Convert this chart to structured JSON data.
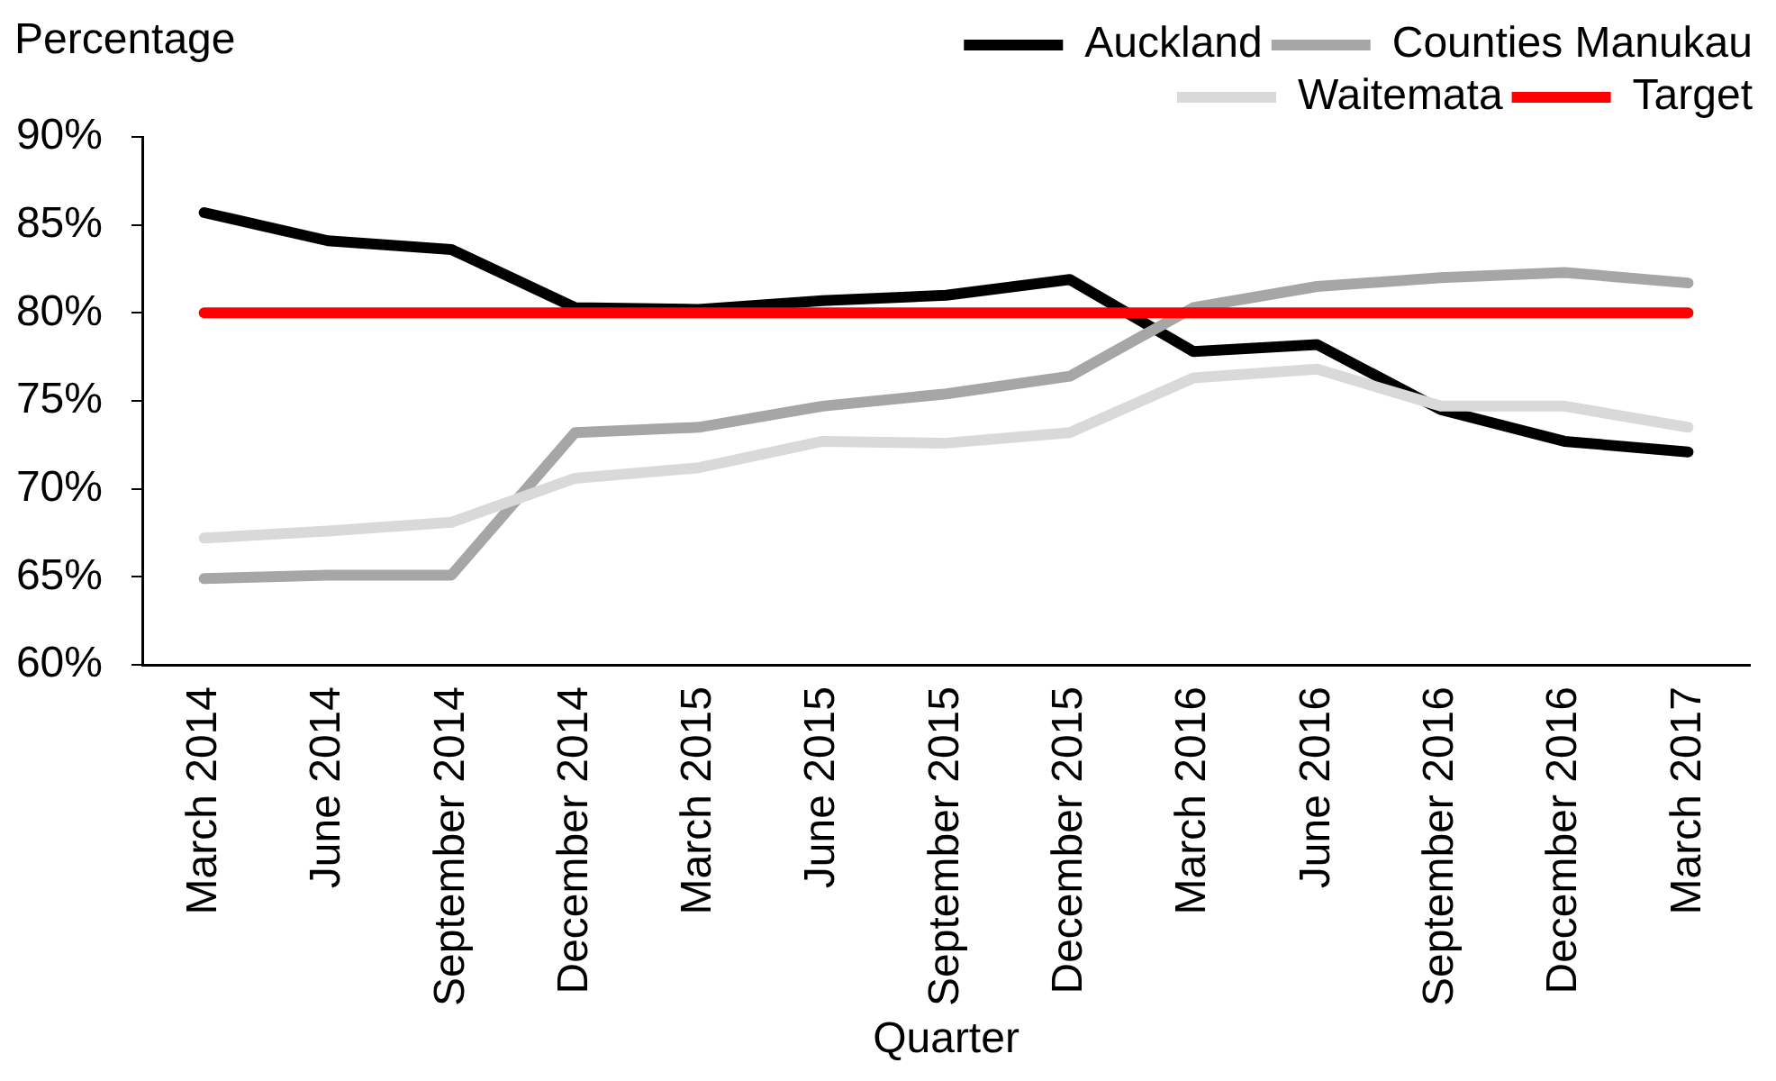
{
  "chart_data": {
    "type": "line",
    "xlabel": "Quarter",
    "ylabel": "Percentage",
    "categories": [
      "March 2014",
      "June 2014",
      "September 2014",
      "December 2014",
      "March 2015",
      "June 2015",
      "September 2015",
      "December 2015",
      "March 2016",
      "June 2016",
      "September 2016",
      "December 2016",
      "March 2017"
    ],
    "series": [
      {
        "name": "Auckland",
        "color": "#000000",
        "values": [
          85.7,
          84.1,
          83.6,
          80.3,
          80.2,
          80.7,
          81.0,
          81.9,
          77.8,
          78.2,
          74.5,
          72.7,
          72.1
        ]
      },
      {
        "name": "Counties Manukau",
        "color": "#a6a6a6",
        "values": [
          64.9,
          65.1,
          65.1,
          73.2,
          73.5,
          74.7,
          75.4,
          76.4,
          80.3,
          81.5,
          82.0,
          82.3,
          81.7
        ]
      },
      {
        "name": "Waitemata",
        "color": "#d9d9d9",
        "values": [
          67.2,
          67.6,
          68.1,
          70.6,
          71.2,
          72.7,
          72.6,
          73.2,
          76.3,
          76.8,
          74.7,
          74.7,
          73.5
        ]
      },
      {
        "name": "Target",
        "color": "#ff0000",
        "values": [
          80,
          80,
          80,
          80,
          80,
          80,
          80,
          80,
          80,
          80,
          80,
          80,
          80
        ]
      }
    ],
    "ylim": [
      60,
      90
    ],
    "yticks": [
      {
        "value": 60,
        "label": "60%"
      },
      {
        "value": 65,
        "label": "65%"
      },
      {
        "value": 70,
        "label": "70%"
      },
      {
        "value": 75,
        "label": "75%"
      },
      {
        "value": 80,
        "label": "80%"
      },
      {
        "value": 85,
        "label": "85%"
      },
      {
        "value": 90,
        "label": "90%"
      }
    ],
    "grid": false,
    "legend": "top right",
    "marker": "none",
    "line_style": "solid"
  }
}
